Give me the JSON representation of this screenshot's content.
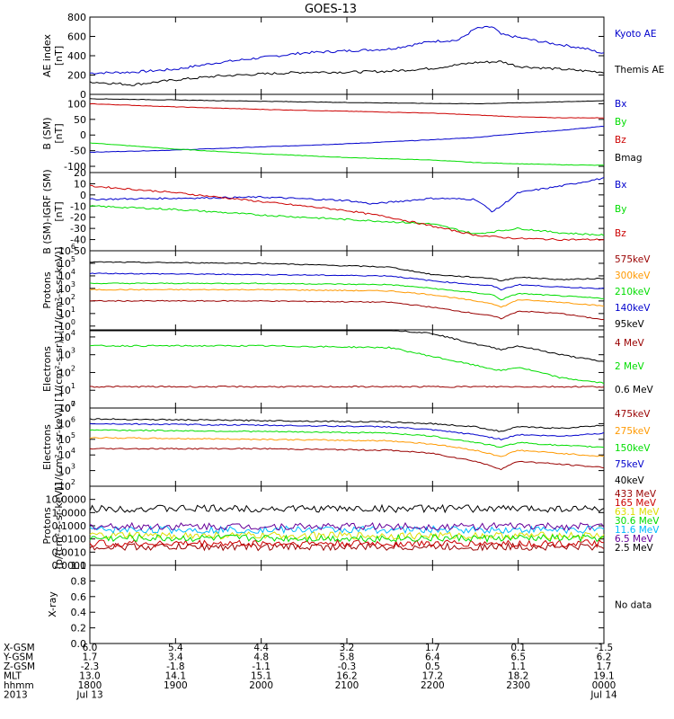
{
  "title": "GOES-13",
  "colors": {
    "black": "#000000",
    "blue": "#0000cc",
    "green": "#00dd00",
    "red": "#cc0000",
    "orange": "#ff9900",
    "darkred": "#990000",
    "cyan": "#00bbff",
    "purple": "#660099",
    "yellow": "#dddd00"
  },
  "no_data_label": "No data",
  "ephemeris": {
    "row_labels": [
      "X-GSM",
      "Y-GSM",
      "Z-GSM",
      "MLT",
      "hhmm",
      "2013"
    ],
    "columns": [
      [
        "6.0",
        "1.7",
        "-2.3",
        "13.0",
        "1800",
        "Jul 13"
      ],
      [
        "5.4",
        "3.4",
        "-1.8",
        "14.1",
        "1900",
        ""
      ],
      [
        "4.4",
        "4.8",
        "-1.1",
        "15.1",
        "2000",
        ""
      ],
      [
        "3.2",
        "5.8",
        "-0.3",
        "16.2",
        "2100",
        ""
      ],
      [
        "1.7",
        "6.4",
        "0.5",
        "17.2",
        "2200",
        ""
      ],
      [
        "0.1",
        "6.5",
        "1.1",
        "18.2",
        "2300",
        ""
      ],
      [
        "-1.5",
        "6.2",
        "1.7",
        "19.1",
        "0000",
        "Jul 14"
      ]
    ]
  },
  "chart_data": [
    {
      "type": "line",
      "ylabel": "AE index\n[nT]",
      "ylim": [
        0,
        800
      ],
      "yscale": "linear",
      "y_ticks": [
        "0",
        "200",
        "400",
        "600",
        "800"
      ],
      "x_range_hours": [
        18,
        24
      ],
      "series": [
        {
          "name": "Kyoto AE",
          "color": "#0000cc",
          "x": [
            18,
            18.5,
            19,
            19.5,
            20,
            20.5,
            21,
            21.5,
            22,
            22.3,
            22.5,
            22.7,
            22.8,
            23,
            23.3,
            23.6,
            23.8,
            24
          ],
          "values": [
            220,
            230,
            260,
            330,
            380,
            430,
            450,
            470,
            550,
            560,
            680,
            700,
            620,
            590,
            540,
            500,
            470,
            420
          ]
        },
        {
          "name": "Themis AE",
          "color": "#000000",
          "x": [
            18,
            18.5,
            19,
            19.5,
            20,
            20.5,
            21,
            21.5,
            22,
            22.5,
            22.8,
            23,
            23.5,
            24
          ],
          "values": [
            130,
            100,
            150,
            190,
            210,
            230,
            230,
            240,
            270,
            330,
            340,
            290,
            260,
            230
          ]
        }
      ]
    },
    {
      "type": "line",
      "ylabel": "B (SM)\n[nT]",
      "ylim": [
        -120,
        130
      ],
      "yscale": "linear",
      "y_ticks": [
        "-100",
        "-50",
        "0",
        "50",
        "100"
      ],
      "x_range_hours": [
        18,
        24
      ],
      "series": [
        {
          "name": "Bx",
          "color": "#0000cc",
          "x": [
            18,
            19,
            20,
            21,
            22,
            22.5,
            23,
            23.5,
            24
          ],
          "values": [
            -55,
            -48,
            -38,
            -28,
            -15,
            -8,
            5,
            15,
            28
          ]
        },
        {
          "name": "By",
          "color": "#00dd00",
          "x": [
            18,
            19,
            20,
            21,
            22,
            22.5,
            23,
            23.5,
            24
          ],
          "values": [
            -25,
            -45,
            -60,
            -72,
            -80,
            -88,
            -92,
            -95,
            -97
          ]
        },
        {
          "name": "Bz",
          "color": "#cc0000",
          "x": [
            18,
            19,
            20,
            21,
            22,
            22.5,
            23,
            23.5,
            24
          ],
          "values": [
            100,
            90,
            82,
            76,
            70,
            64,
            58,
            55,
            55
          ]
        },
        {
          "name": "Bmag",
          "color": "#000000",
          "x": [
            18,
            19,
            20,
            21,
            22,
            22.5,
            23,
            23.5,
            24
          ],
          "values": [
            116,
            112,
            108,
            104,
            101,
            100,
            103,
            106,
            110
          ]
        }
      ]
    },
    {
      "type": "line",
      "ylabel": "B (SM)-IGRF (SM)\n[nT]",
      "ylim": [
        -50,
        20
      ],
      "yscale": "linear",
      "y_ticks": [
        "-50",
        "-40",
        "-30",
        "-20",
        "-10",
        "0",
        "10",
        "20"
      ],
      "x_range_hours": [
        18,
        24
      ],
      "series": [
        {
          "name": "Bx",
          "color": "#0000cc",
          "x": [
            18,
            19,
            20,
            21,
            21.3,
            22,
            22.5,
            22.7,
            22.8,
            23,
            23.5,
            24
          ],
          "values": [
            -4,
            -3,
            -2,
            -5,
            -8,
            -3,
            -4,
            -15,
            -10,
            2,
            8,
            15
          ]
        },
        {
          "name": "By",
          "color": "#00dd00",
          "x": [
            18,
            19,
            20,
            21,
            21.5,
            22,
            22.5,
            22.8,
            23,
            23.5,
            24
          ],
          "values": [
            -10,
            -13,
            -18,
            -22,
            -24,
            -26,
            -35,
            -32,
            -30,
            -34,
            -36
          ]
        },
        {
          "name": "Bz",
          "color": "#cc0000",
          "x": [
            18,
            19,
            20,
            21,
            21.5,
            22,
            22.5,
            22.8,
            23,
            23.5,
            24
          ],
          "values": [
            8,
            2,
            -6,
            -14,
            -20,
            -28,
            -36,
            -38,
            -39,
            -40,
            -40
          ]
        }
      ]
    },
    {
      "type": "line",
      "ylabel": "Protons\n[1/(cm²-s-sr-keV)]",
      "ylim": [
        0,
        6
      ],
      "yscale": "log",
      "log_range_exponents": [
        -0.3,
        6
      ],
      "y_ticks_exp": [
        0,
        1,
        2,
        3,
        4,
        5,
        6
      ],
      "x_range_hours": [
        18,
        24
      ],
      "series": [
        {
          "name": "575keV",
          "color": "#990000",
          "x": [
            18,
            20,
            21.5,
            22,
            22.7,
            22.8,
            23,
            23.5,
            24
          ],
          "values": [
            2,
            2,
            1.9,
            1.5,
            0.8,
            0.6,
            1.2,
            1,
            0.5
          ]
        },
        {
          "name": "300keV",
          "color": "#ff9900",
          "x": [
            18,
            20,
            21.5,
            22,
            22.7,
            22.8,
            23,
            23.5,
            24
          ],
          "values": [
            2.9,
            2.9,
            2.8,
            2.5,
            1.8,
            1.5,
            2.1,
            1.9,
            1.6
          ]
        },
        {
          "name": "210keV",
          "color": "#00dd00",
          "x": [
            18,
            20,
            21.5,
            22,
            22.7,
            22.8,
            23,
            23.5,
            24
          ],
          "values": [
            3.4,
            3.4,
            3.3,
            3,
            2.5,
            2.1,
            2.6,
            2.4,
            2.2
          ]
        },
        {
          "name": "140keV",
          "color": "#0000cc",
          "x": [
            18,
            20,
            21.5,
            22,
            22.7,
            22.8,
            23,
            23.5,
            24
          ],
          "values": [
            4.2,
            4.1,
            4,
            3.6,
            3.2,
            2.9,
            3.3,
            3.1,
            3
          ]
        },
        {
          "name": "95keV",
          "color": "#000000",
          "x": [
            18,
            20,
            21.5,
            22,
            22.7,
            22.8,
            23,
            23.5,
            24
          ],
          "values": [
            5.1,
            5,
            4.7,
            4.1,
            3.8,
            3.6,
            3.9,
            3.7,
            3.8
          ]
        }
      ]
    },
    {
      "type": "line",
      "ylabel": "Electrons\n[1/(cm²-s-sr)]",
      "ylim": [
        0,
        4.4
      ],
      "yscale": "log",
      "log_range_exponents": [
        0,
        4.4
      ],
      "y_ticks_exp": [
        0,
        1,
        2,
        3,
        4
      ],
      "x_range_hours": [
        18,
        24
      ],
      "series": [
        {
          "name": "4 MeV",
          "color": "#990000",
          "x": [
            18,
            19,
            20,
            21,
            22,
            23,
            24
          ],
          "values": [
            1.2,
            1.2,
            1.2,
            1.2,
            1.2,
            1.2,
            1.2
          ]
        },
        {
          "name": "2 MeV",
          "color": "#00dd00",
          "x": [
            18,
            20,
            21.5,
            22,
            22.5,
            22.8,
            23,
            23.5,
            24
          ],
          "values": [
            3.5,
            3.5,
            3.4,
            2.9,
            2.4,
            2.1,
            2.3,
            1.7,
            1.4
          ]
        },
        {
          "name": "0.6 MeV",
          "color": "#000000",
          "x": [
            18,
            20,
            21.5,
            22,
            22.5,
            22.8,
            23,
            23.5,
            24
          ],
          "values": [
            4.4,
            4.4,
            4.4,
            4.2,
            3.6,
            3.3,
            3.5,
            3.0,
            2.6
          ]
        }
      ]
    },
    {
      "type": "line",
      "ylabel": "Electrons\n[1/(cm²-s-sr-keV)]",
      "ylim": [
        2,
        7
      ],
      "yscale": "log",
      "log_range_exponents": [
        2,
        7
      ],
      "y_ticks_exp": [
        2,
        3,
        4,
        5,
        6,
        7
      ],
      "x_range_hours": [
        18,
        24
      ],
      "series": [
        {
          "name": "475keV",
          "color": "#990000",
          "x": [
            18,
            20,
            21.5,
            22,
            22.5,
            22.8,
            23,
            23.5,
            24
          ],
          "values": [
            4.4,
            4.4,
            4.3,
            4.1,
            3.6,
            3.1,
            3.6,
            3.4,
            3.2
          ]
        },
        {
          "name": "275keV",
          "color": "#ff9900",
          "x": [
            18,
            20,
            21.5,
            22,
            22.5,
            22.8,
            23,
            23.5,
            24
          ],
          "values": [
            5.1,
            5.0,
            4.9,
            4.7,
            4.3,
            3.9,
            4.3,
            4.1,
            3.9
          ]
        },
        {
          "name": "150keV",
          "color": "#00dd00",
          "x": [
            18,
            20,
            21.5,
            22,
            22.5,
            22.8,
            23,
            23.5,
            24
          ],
          "values": [
            5.6,
            5.5,
            5.4,
            5.2,
            4.8,
            4.5,
            4.8,
            4.6,
            4.5
          ]
        },
        {
          "name": "75keV",
          "color": "#0000cc",
          "x": [
            18,
            20,
            21.5,
            22,
            22.5,
            22.8,
            23,
            23.5,
            24
          ],
          "values": [
            6.0,
            5.9,
            5.8,
            5.6,
            5.3,
            5.0,
            5.3,
            5.2,
            5.4
          ]
        },
        {
          "name": "40keV",
          "color": "#000000",
          "x": [
            18,
            20,
            21.5,
            22,
            22.5,
            22.8,
            23,
            23.5,
            24
          ],
          "values": [
            6.3,
            6.2,
            6.1,
            6.0,
            5.8,
            5.5,
            5.8,
            5.7,
            5.9
          ]
        }
      ]
    },
    {
      "type": "line",
      "ylabel": "Protons\n[p/(cm²-s-sr-keV)]",
      "ylim": [
        -4,
        2
      ],
      "yscale": "log",
      "log_range_exponents": [
        -4,
        2
      ],
      "y_ticks": [
        "0.0001",
        "0.0010",
        "0.0100",
        "0.1000",
        "1.0000",
        "10.0000"
      ],
      "x_range_hours": [
        18,
        24
      ],
      "series": [
        {
          "name": "433 MeV",
          "color": "#990000",
          "x": [
            18,
            21,
            24
          ],
          "values": [
            -2.6,
            -2.6,
            -2.6
          ]
        },
        {
          "name": "165 MeV",
          "color": "#cc0000",
          "x": [
            18,
            21,
            24
          ],
          "values": [
            -2.35,
            -2.35,
            -2.35
          ]
        },
        {
          "name": "63.1 MeV",
          "color": "#dddd00",
          "x": [
            18,
            21,
            24
          ],
          "values": [
            -1.75,
            -1.75,
            -1.75
          ]
        },
        {
          "name": "30.6 MeV",
          "color": "#00dd00",
          "x": [
            18,
            21,
            24
          ],
          "values": [
            -1.95,
            -1.95,
            -1.95
          ]
        },
        {
          "name": "11.6 MeV",
          "color": "#00bbff",
          "x": [
            18,
            21,
            24
          ],
          "values": [
            -1.3,
            -1.3,
            -1.3
          ]
        },
        {
          "name": "6.5 MeV",
          "color": "#660099",
          "x": [
            18,
            21,
            24
          ],
          "values": [
            -1.05,
            -1.05,
            -1.05
          ]
        },
        {
          "name": "2.5 MeV",
          "color": "#000000",
          "x": [
            18,
            21,
            24
          ],
          "values": [
            0.3,
            0.3,
            0.3
          ]
        }
      ]
    },
    {
      "type": "line",
      "ylabel": "X-ray",
      "ylim": [
        0,
        1
      ],
      "yscale": "linear",
      "y_ticks": [
        "0.0",
        "0.2",
        "0.4",
        "0.6",
        "0.8",
        "1.0"
      ],
      "x_range_hours": [
        18,
        24
      ],
      "series": []
    }
  ]
}
